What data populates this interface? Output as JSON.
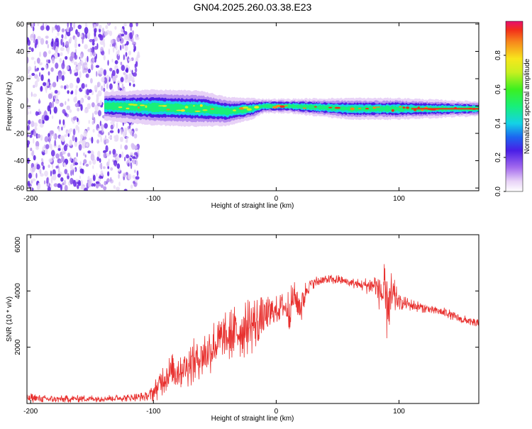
{
  "title": "GN04.2025.260.03.38.E23",
  "chart_data": [
    {
      "type": "heatmap",
      "title": "GN04.2025.260.03.38.E23",
      "xlabel": "Height of straight line (km)",
      "ylabel": "Frequency (Hz)",
      "xlim": [
        -203,
        165
      ],
      "ylim": [
        -62,
        61
      ],
      "x_ticks": [
        -200,
        -100,
        0,
        100
      ],
      "x_tick_labels": [
        "-200",
        "-100",
        "0",
        "100"
      ],
      "y_ticks": [
        -60,
        -40,
        -20,
        0,
        20,
        40,
        60
      ],
      "y_tick_labels": [
        "-60",
        "-40",
        "-20",
        "0",
        "20",
        "40",
        "60"
      ],
      "noise_region_x": [
        -203,
        -112
      ],
      "band_path": [
        {
          "x": -140,
          "f": 0,
          "halfwidth": 4
        },
        {
          "x": -100,
          "f": -1,
          "halfwidth": 5
        },
        {
          "x": -60,
          "f": -2,
          "halfwidth": 5
        },
        {
          "x": -40,
          "f": -4,
          "halfwidth": 4
        },
        {
          "x": -20,
          "f": -2,
          "halfwidth": 3
        },
        {
          "x": -10,
          "f": 0,
          "halfwidth": 2
        },
        {
          "x": 10,
          "f": 0,
          "halfwidth": 2
        },
        {
          "x": 60,
          "f": -2,
          "halfwidth": 3
        },
        {
          "x": 100,
          "f": -2,
          "halfwidth": 3
        },
        {
          "x": 165,
          "f": -2,
          "halfwidth": 2
        }
      ],
      "colorbar": {
        "label": "Normalized spectral amplitude",
        "range": [
          0,
          1
        ],
        "ticks": [
          0.0,
          0.2,
          0.4,
          0.6,
          0.8
        ],
        "tick_labels": [
          "0.0",
          "0.2",
          "0.4",
          "0.6",
          "0.8"
        ]
      }
    },
    {
      "type": "line",
      "xlabel": "Height of straight line (km)",
      "ylabel": "SNR (10 * v/v)",
      "xlim": [
        -203,
        165
      ],
      "ylim": [
        0,
        6000
      ],
      "x_ticks": [
        -200,
        -100,
        0,
        100
      ],
      "x_tick_labels": [
        "-200",
        "-100",
        "0",
        "100"
      ],
      "y_ticks": [
        2000,
        4000,
        6000
      ],
      "y_tick_labels": [
        "2000",
        "4000",
        "6000"
      ],
      "line_color": "#e8302e",
      "series": [
        {
          "name": "SNR",
          "x": [
            -203,
            -180,
            -160,
            -140,
            -120,
            -105,
            -100,
            -95,
            -90,
            -80,
            -70,
            -60,
            -50,
            -40,
            -30,
            -20,
            -10,
            0,
            5,
            10,
            15,
            20,
            25,
            30,
            40,
            50,
            60,
            70,
            80,
            85,
            88,
            90,
            95,
            100,
            110,
            120,
            130,
            140,
            150,
            165
          ],
          "values": [
            200,
            150,
            170,
            180,
            200,
            250,
            400,
            700,
            1000,
            1200,
            1400,
            1700,
            2100,
            2300,
            2600,
            2800,
            3000,
            3300,
            3500,
            3300,
            3800,
            3400,
            4100,
            4300,
            4400,
            4400,
            4300,
            4200,
            4200,
            4000,
            3700,
            3600,
            3800,
            3600,
            3500,
            3400,
            3300,
            3200,
            3000,
            2800
          ],
          "noise": [
            200,
            150,
            150,
            150,
            150,
            200,
            400,
            600,
            700,
            800,
            900,
            1000,
            1100,
            1100,
            1200,
            1200,
            900,
            600,
            500,
            900,
            600,
            900,
            350,
            250,
            200,
            200,
            200,
            250,
            500,
            900,
            1400,
            1600,
            900,
            300,
            250,
            200,
            200,
            200,
            200,
            200
          ]
        }
      ]
    }
  ]
}
